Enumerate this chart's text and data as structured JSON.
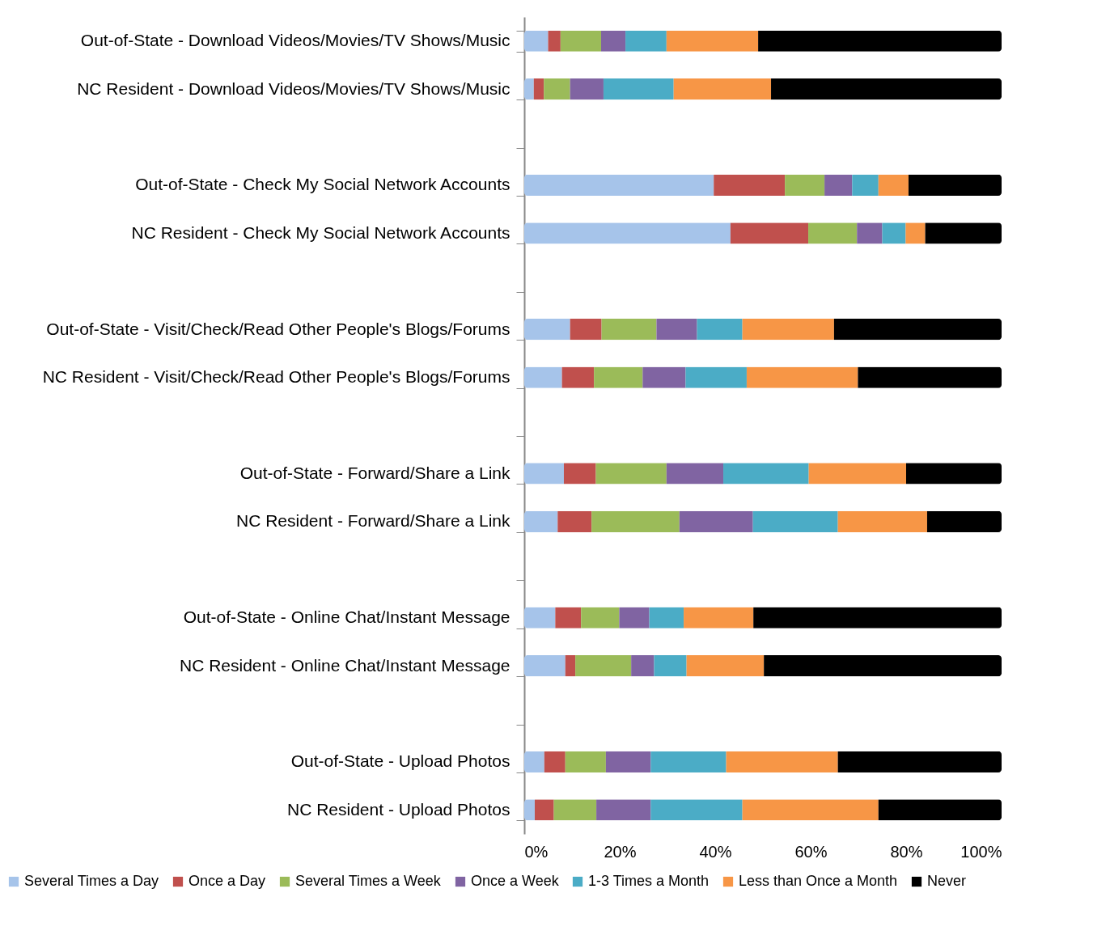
{
  "chart_data": {
    "type": "bar",
    "orientation": "horizontal",
    "stacked": true,
    "legend": "bottom",
    "categories": [
      "Out-of-State - Download Videos/Movies/TV Shows/Music",
      "NC Resident  - Download Videos/Movies/TV Shows/Music",
      null,
      "Out-of-State - Check My Social Network Accounts",
      "NC Resident  - Check My Social Network Accounts",
      null,
      "Out-of-State - Visit/Check/Read Other People's Blogs/Forums",
      "NC Resident - Visit/Check/Read Other People's Blogs/Forums",
      null,
      "Out-of-State - Forward/Share a Link",
      "NC Resident - Forward/Share a Link",
      null,
      "Out-of-State - Online Chat/Instant Message",
      "NC Resident - Online Chat/Instant Message",
      null,
      "Out-of-State - Upload Photos",
      "NC Resident - Upload Photos"
    ],
    "series": [
      {
        "name": "Several Times a Day",
        "color": "#a6c4ea",
        "values": [
          5.0,
          2.0,
          null,
          39.7,
          43.2,
          null,
          9.6,
          7.9,
          null,
          8.3,
          7.0,
          null,
          6.5,
          8.6,
          null,
          4.2,
          2.2
        ]
      },
      {
        "name": "Once a Day",
        "color": "#c0504d",
        "values": [
          2.6,
          2.1,
          null,
          14.9,
          16.3,
          null,
          6.6,
          6.7,
          null,
          6.7,
          7.1,
          null,
          5.4,
          2.1,
          null,
          4.4,
          4.0
        ]
      },
      {
        "name": "Several Times a Week",
        "color": "#9bbb59",
        "values": [
          8.5,
          5.5,
          null,
          8.3,
          10.2,
          null,
          11.5,
          10.2,
          null,
          14.8,
          18.4,
          null,
          8.0,
          11.7,
          null,
          8.5,
          8.9
        ]
      },
      {
        "name": "Once a Week",
        "color": "#8064a2",
        "values": [
          5.1,
          7.0,
          null,
          5.8,
          5.3,
          null,
          8.5,
          9.0,
          null,
          11.9,
          15.4,
          null,
          6.3,
          4.8,
          null,
          9.4,
          11.4
        ]
      },
      {
        "name": "1-3 Times a Month",
        "color": "#4bacc6",
        "values": [
          8.6,
          14.7,
          null,
          5.5,
          4.9,
          null,
          9.5,
          12.8,
          null,
          17.9,
          17.8,
          null,
          7.2,
          6.8,
          null,
          15.8,
          19.2
        ]
      },
      {
        "name": "Less than Once a Month",
        "color": "#f79646",
        "values": [
          19.2,
          20.4,
          null,
          6.3,
          4.1,
          null,
          19.2,
          23.3,
          null,
          20.4,
          18.7,
          null,
          14.6,
          16.2,
          null,
          23.4,
          28.5
        ]
      },
      {
        "name": "Never",
        "color": "#000000",
        "values": [
          51.0,
          48.3,
          null,
          19.5,
          16.0,
          null,
          35.1,
          30.1,
          null,
          20.0,
          15.6,
          null,
          52.0,
          49.8,
          null,
          34.3,
          25.8
        ]
      }
    ],
    "xlim": [
      0,
      100
    ],
    "xticks": [
      {
        "value": 0,
        "label": "0%"
      },
      {
        "value": 20,
        "label": "20%"
      },
      {
        "value": 40,
        "label": "40%"
      },
      {
        "value": 60,
        "label": "60%"
      },
      {
        "value": 80,
        "label": "80%"
      },
      {
        "value": 100,
        "label": "100%"
      }
    ]
  }
}
